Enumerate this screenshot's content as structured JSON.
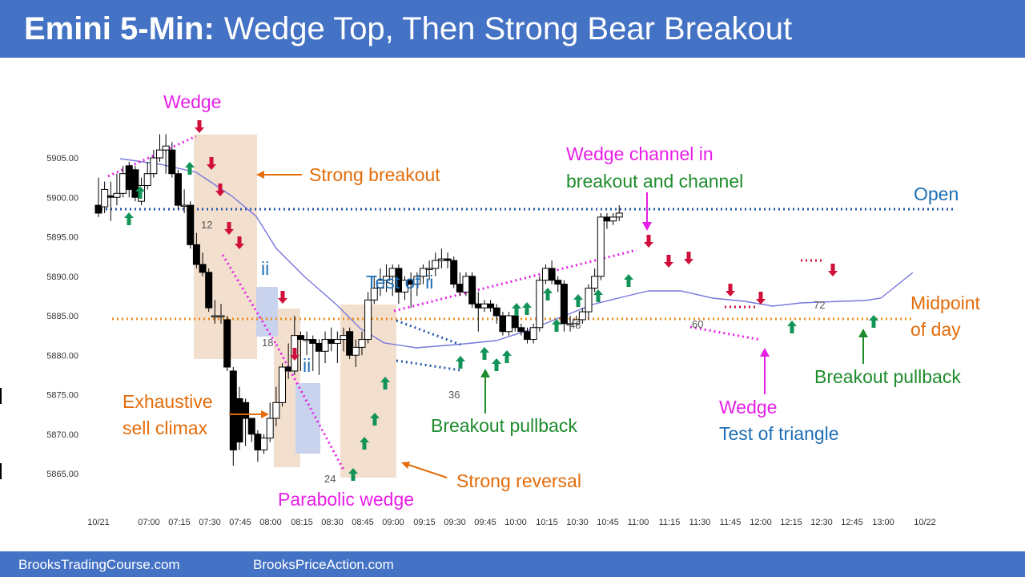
{
  "title": {
    "bold": "Emini 5-Min:",
    "rest": "Wedge Top, Then Strong Bear Breakout"
  },
  "footer": {
    "left": "BrooksTradingCourse.com",
    "right": "BrooksPriceAction.com"
  },
  "chart_data": {
    "type": "candlestick",
    "y_ticks": [
      "5905.00",
      "5900.00",
      "5895.00",
      "5890.00",
      "5885.00",
      "5880.00",
      "5875.00",
      "5870.00",
      "5865.00"
    ],
    "ylim": [
      5864,
      5910
    ],
    "x_ticks": [
      "10/21",
      "07:00",
      "07:15",
      "07:30",
      "07:45",
      "08:00",
      "08:15",
      "08:30",
      "08:45",
      "09:00",
      "09:15",
      "09:30",
      "09:45",
      "10:00",
      "10:15",
      "10:30",
      "10:45",
      "11:00",
      "11:15",
      "11:30",
      "11:45",
      "12:00",
      "12:15",
      "12:30",
      "12:45",
      "13:00",
      "10/22"
    ],
    "bar_labels": [
      "12",
      "18",
      "24",
      "36",
      "48",
      "60",
      "72"
    ],
    "levels": {
      "open": 5898.5,
      "midpoint": 5884.7
    },
    "candles": [
      [
        5899.0,
        5898.0,
        5902.5,
        5897.5
      ],
      [
        5898.8,
        5901.0,
        5902.0,
        5898.0
      ],
      [
        5900.2,
        5900.0,
        5902.0,
        5897.0
      ],
      [
        5900.0,
        5900.5,
        5903.0,
        5899.0
      ],
      [
        5900.5,
        5903.0,
        5904.0,
        5900.0
      ],
      [
        5904.0,
        5901.0,
        5904.5,
        5900.0
      ],
      [
        5903.5,
        5900.0,
        5904.0,
        5899.5
      ],
      [
        5899.5,
        5901.5,
        5902.5,
        5899.0
      ],
      [
        5901.5,
        5903.0,
        5904.5,
        5901.0
      ],
      [
        5903.0,
        5905.0,
        5906.0,
        5902.5
      ],
      [
        5905.0,
        5906.0,
        5908.0,
        5904.5
      ],
      [
        5906.0,
        5906.5,
        5908.0,
        5903.0
      ],
      [
        5906.0,
        5903.0,
        5907.0,
        5902.5
      ],
      [
        5903.0,
        5899.0,
        5903.5,
        5898.5
      ],
      [
        5899.0,
        5899.0,
        5901.0,
        5898.0
      ],
      [
        5899.0,
        5894.0,
        5899.5,
        5893.5
      ],
      [
        5894.0,
        5891.5,
        5895.5,
        5891.0
      ],
      [
        5891.5,
        5890.5,
        5893.0,
        5890.0
      ],
      [
        5890.5,
        5886.0,
        5891.0,
        5885.5
      ],
      [
        5885.0,
        5885.0,
        5887.0,
        5884.0
      ],
      [
        5885.0,
        5885.0,
        5886.5,
        5884.0
      ],
      [
        5884.5,
        5878.5,
        5885.0,
        5878.0
      ],
      [
        5878.0,
        5868.0,
        5878.5,
        5866.0
      ],
      [
        5874.5,
        5869.0,
        5876.0,
        5868.0
      ],
      [
        5874.0,
        5872.0,
        5874.5,
        5868.5
      ],
      [
        5872.0,
        5870.0,
        5872.0,
        5869.0
      ],
      [
        5870.0,
        5868.0,
        5870.5,
        5866.5
      ],
      [
        5868.0,
        5869.5,
        5870.0,
        5867.5
      ],
      [
        5869.5,
        5872.0,
        5874.0,
        5869.0
      ],
      [
        5872.0,
        5874.0,
        5876.0,
        5871.0
      ],
      [
        5874.0,
        5878.5,
        5879.0,
        5873.5
      ],
      [
        5878.5,
        5878.0,
        5881.5,
        5877.0
      ],
      [
        5878.0,
        5882.5,
        5885.0,
        5877.5
      ],
      [
        5882.5,
        5882.0,
        5883.0,
        5878.0
      ],
      [
        5882.0,
        5882.0,
        5883.0,
        5880.0
      ],
      [
        5882.0,
        5881.5,
        5882.5,
        5878.0
      ],
      [
        5881.5,
        5880.5,
        5882.0,
        5877.5
      ],
      [
        5880.5,
        5882.0,
        5883.0,
        5879.0
      ],
      [
        5882.0,
        5881.5,
        5883.5,
        5880.5
      ],
      [
        5881.5,
        5882.0,
        5883.0,
        5879.0
      ],
      [
        5882.0,
        5882.5,
        5883.5,
        5880.5
      ],
      [
        5883.0,
        5880.0,
        5883.5,
        5879.5
      ],
      [
        5880.0,
        5881.0,
        5882.0,
        5878.5
      ],
      [
        5881.0,
        5882.0,
        5883.0,
        5880.0
      ],
      [
        5882.0,
        5887.0,
        5888.0,
        5881.5
      ],
      [
        5887.0,
        5888.5,
        5890.0,
        5886.5
      ],
      [
        5888.5,
        5889.5,
        5891.0,
        5887.5
      ],
      [
        5889.5,
        5890.0,
        5891.5,
        5888.0
      ],
      [
        5890.0,
        5891.0,
        5891.5,
        5887.5
      ],
      [
        5891.0,
        5888.0,
        5891.5,
        5886.5
      ],
      [
        5888.0,
        5889.5,
        5890.0,
        5887.0
      ],
      [
        5889.5,
        5889.0,
        5890.5,
        5886.0
      ],
      [
        5889.0,
        5890.0,
        5890.5,
        5887.5
      ],
      [
        5890.0,
        5891.0,
        5891.5,
        5889.0
      ],
      [
        5891.0,
        5891.0,
        5892.0,
        5889.5
      ],
      [
        5891.0,
        5892.0,
        5893.0,
        5890.0
      ],
      [
        5892.0,
        5892.2,
        5893.5,
        5891.0
      ],
      [
        5892.2,
        5892.0,
        5893.0,
        5891.0
      ],
      [
        5892.0,
        5889.0,
        5892.5,
        5888.5
      ],
      [
        5889.0,
        5888.0,
        5890.5,
        5887.5
      ],
      [
        5888.0,
        5890.0,
        5890.5,
        5887.5
      ],
      [
        5890.0,
        5886.5,
        5890.5,
        5886.0
      ],
      [
        5886.5,
        5886.0,
        5888.0,
        5883.0
      ],
      [
        5886.0,
        5886.5,
        5887.0,
        5885.5
      ],
      [
        5886.5,
        5886.0,
        5887.0,
        5885.5
      ],
      [
        5886.0,
        5885.0,
        5886.5,
        5884.0
      ],
      [
        5885.0,
        5883.0,
        5885.5,
        5882.5
      ],
      [
        5883.0,
        5885.0,
        5885.5,
        5882.5
      ],
      [
        5885.0,
        5883.5,
        5885.5,
        5883.0
      ],
      [
        5883.5,
        5883.0,
        5884.0,
        5882.5
      ],
      [
        5883.0,
        5882.0,
        5883.5,
        5881.5
      ],
      [
        5882.0,
        5883.5,
        5884.0,
        5881.5
      ],
      [
        5883.5,
        5889.5,
        5890.0,
        5883.0
      ],
      [
        5889.5,
        5891.0,
        5891.5,
        5889.0
      ],
      [
        5891.0,
        5889.5,
        5892.0,
        5889.0
      ],
      [
        5889.5,
        5889.0,
        5890.0,
        5888.0
      ],
      [
        5889.0,
        5884.0,
        5889.5,
        5883.0
      ],
      [
        5884.0,
        5884.0,
        5885.0,
        5883.0
      ],
      [
        5884.0,
        5884.5,
        5885.0,
        5883.5
      ],
      [
        5884.5,
        5885.5,
        5886.0,
        5884.0
      ],
      [
        5885.5,
        5888.5,
        5889.0,
        5884.5
      ],
      [
        5888.5,
        5890.0,
        5891.0,
        5888.0
      ],
      [
        5890.0,
        5897.5,
        5898.0,
        5889.5
      ],
      [
        5897.5,
        5897.0,
        5898.0,
        5896.0
      ],
      [
        5897.0,
        5897.5,
        5898.0,
        5896.5
      ],
      [
        5897.5,
        5898.0,
        5899.0,
        5897.0
      ]
    ],
    "ema_points": [
      [
        150,
        198
      ],
      [
        200,
        205
      ],
      [
        245,
        215
      ],
      [
        290,
        245
      ],
      [
        320,
        270
      ],
      [
        345,
        310
      ],
      [
        380,
        345
      ],
      [
        420,
        380
      ],
      [
        450,
        410
      ],
      [
        480,
        428
      ],
      [
        520,
        434
      ],
      [
        570,
        430
      ],
      [
        620,
        425
      ],
      [
        660,
        412
      ],
      [
        700,
        396
      ],
      [
        740,
        380
      ],
      [
        780,
        370
      ],
      [
        810,
        363
      ],
      [
        850,
        363
      ],
      [
        890,
        372
      ],
      [
        930,
        376
      ],
      [
        965,
        382
      ],
      [
        1000,
        378
      ],
      [
        1050,
        376
      ],
      [
        1080,
        375
      ],
      [
        1100,
        372
      ],
      [
        1140,
        340
      ]
    ],
    "annotations": {
      "wedge": "Wedge",
      "strong_breakout": "Strong breakout",
      "ii_1": "ii",
      "ii_2": "ii",
      "test_of_ii": "Test of ii",
      "wedge_channel_1": "Wedge channel in",
      "wedge_channel_2": "breakout and channel",
      "open": "Open",
      "midpoint_1": "Midpoint",
      "midpoint_2": "of day",
      "exhaustive_1": "Exhaustive",
      "exhaustive_2": "sell climax",
      "parabolic_wedge": "Parabolic wedge",
      "strong_reversal": "Strong reversal",
      "breakout_pullback_1": "Breakout pullback",
      "breakout_pullback_2": "Breakout pullback",
      "wedge_2": "Wedge",
      "test_of_triangle": "Test of triangle"
    },
    "colors": {
      "orange": "#e46c0a",
      "magenta": "#e61ee6",
      "blue": "#1f6fb5",
      "green": "#1e8c2c",
      "up_arrow": "#129357",
      "down_arrow": "#d0103a",
      "dotted_blue": "#2255aa",
      "dotted_orange": "#ed8c1e",
      "ema": "#7777dd",
      "box_fill": "#f2dfcd",
      "ii_box_fill": "#c9d3ee"
    }
  }
}
